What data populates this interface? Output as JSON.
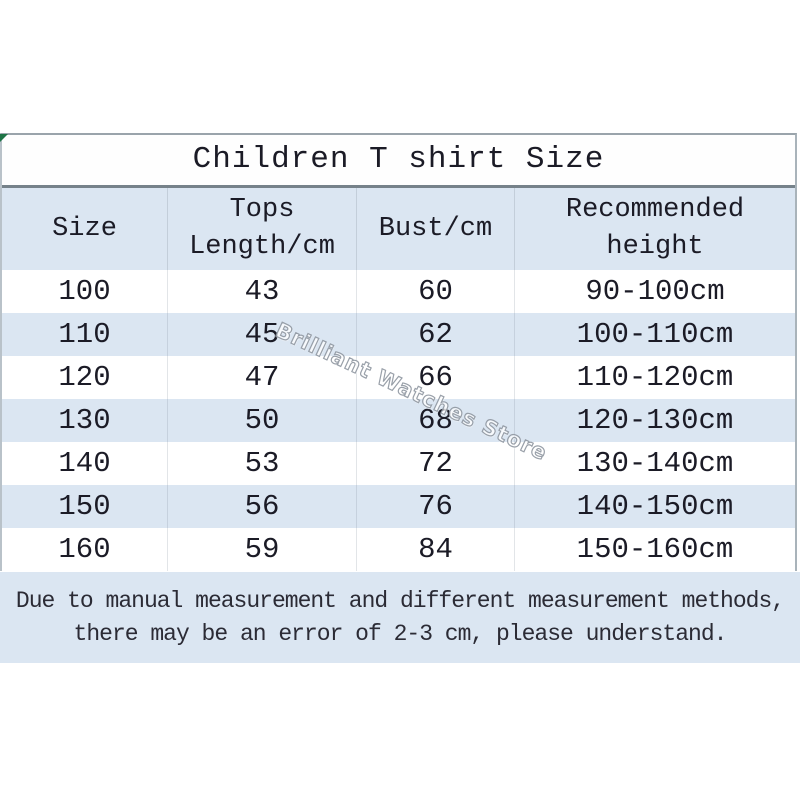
{
  "colors": {
    "stripe_blue": "#dbe6f2",
    "text_dark": "#1b1b26",
    "title_divider_gray": "#76828a",
    "corner_green": "#1e7446",
    "watermark_outline_gray": "#8e96a0",
    "background": "#ffffff"
  },
  "header_display": {
    "col1": [
      "Size"
    ],
    "col2": [
      "Tops",
      "Length/cm"
    ],
    "col3": [
      "Bust/cm"
    ],
    "col4": [
      "Recommended",
      "height"
    ]
  },
  "note": {
    "line1": "Due to manual measurement and different measurement methods,",
    "line2": "there may be an error of 2-3 cm, please understand."
  },
  "watermark": {
    "text": "Brilliant Watches Store"
  },
  "chart_data": {
    "type": "table",
    "title": "Children T shirt Size",
    "columns": [
      "Size",
      "Tops Length/cm",
      "Bust/cm",
      "Recommended height"
    ],
    "rows": [
      [
        "100",
        "43",
        "60",
        "90-100cm"
      ],
      [
        "110",
        "45",
        "62",
        "100-110cm"
      ],
      [
        "120",
        "47",
        "66",
        "110-120cm"
      ],
      [
        "130",
        "50",
        "68",
        "120-130cm"
      ],
      [
        "140",
        "53",
        "72",
        "130-140cm"
      ],
      [
        "150",
        "56",
        "76",
        "140-150cm"
      ],
      [
        "160",
        "59",
        "84",
        "150-160cm"
      ]
    ],
    "notes": "Due to manual measurement and different measurement methods, there may be an error of 2-3 cm, please understand."
  }
}
